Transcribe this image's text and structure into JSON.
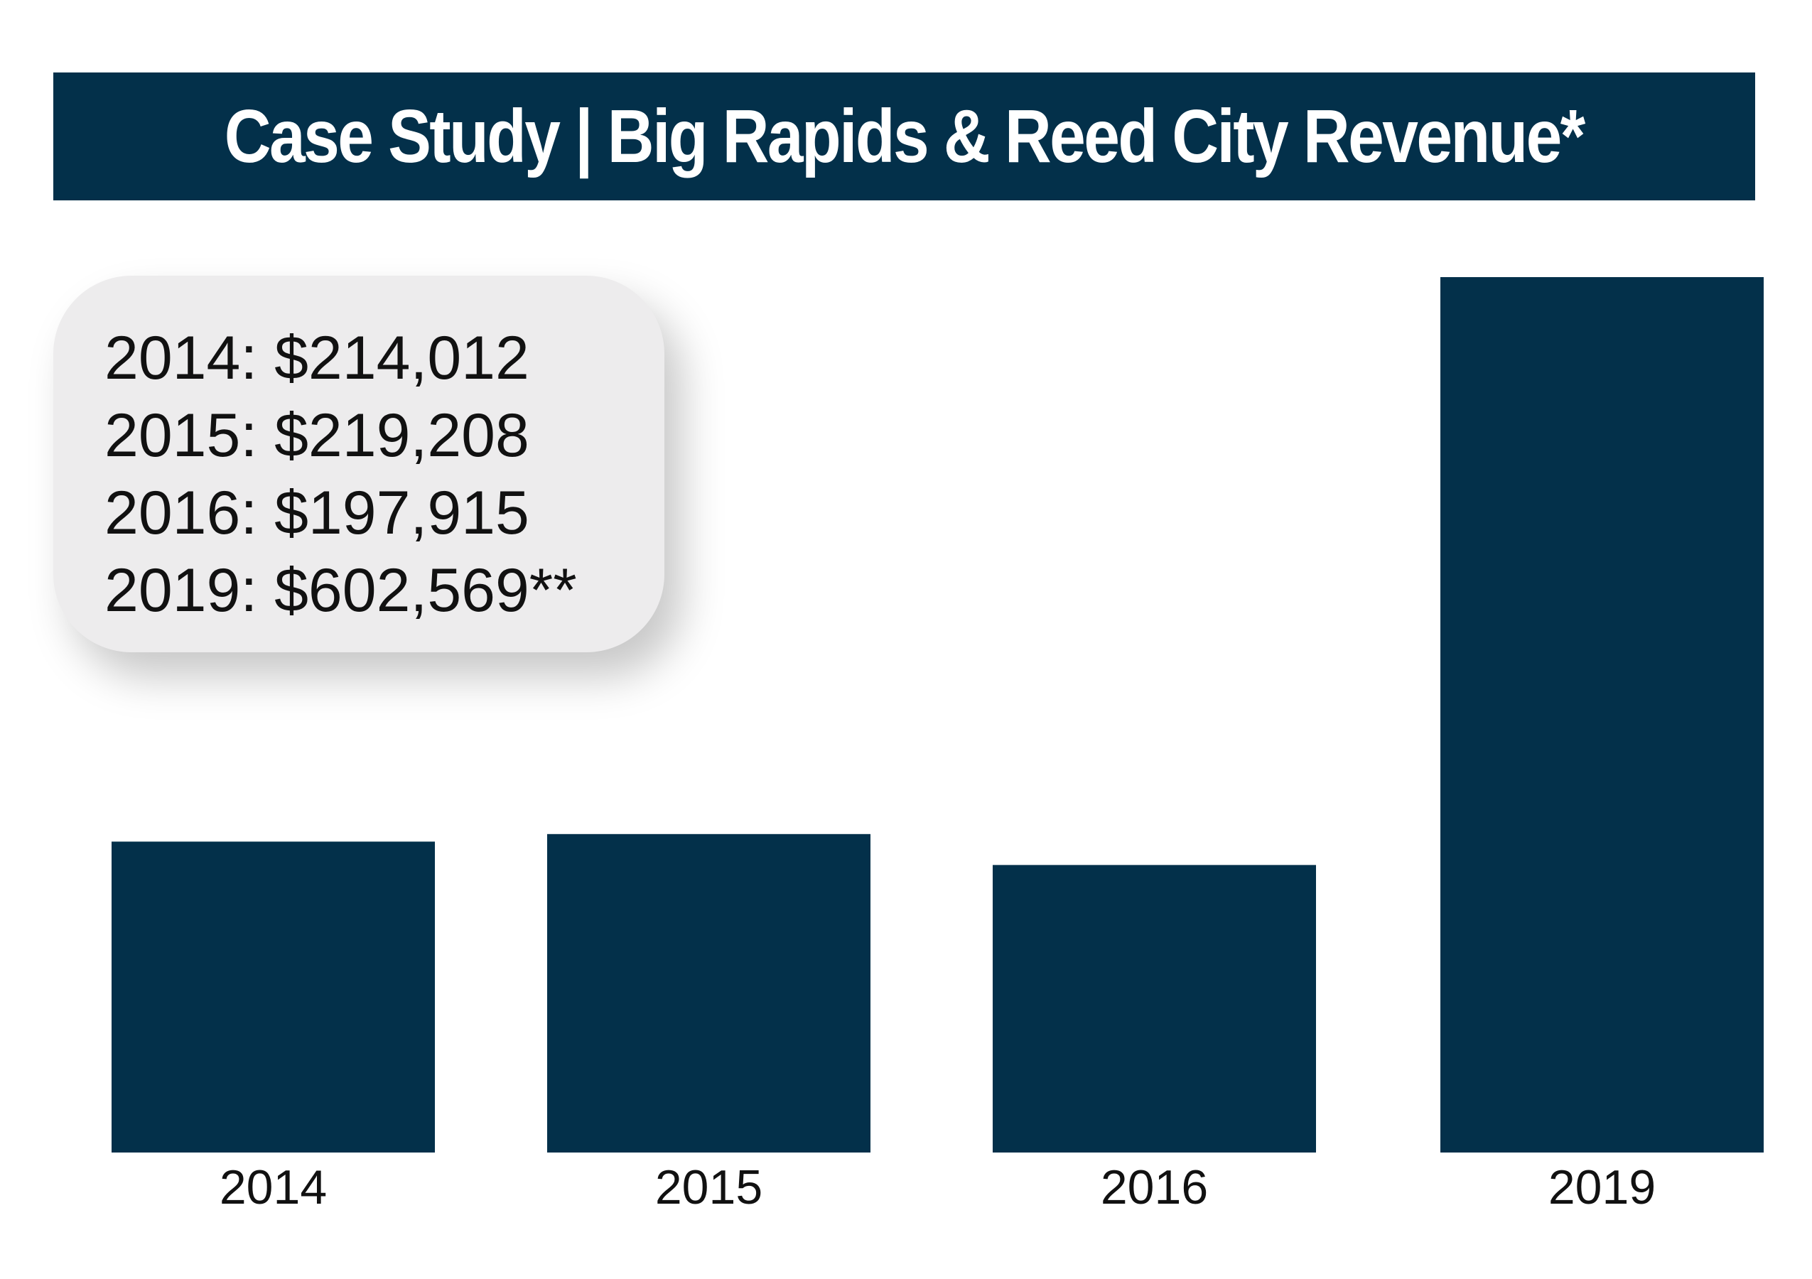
{
  "title": "Case Study | Big Rapids & Reed City Revenue*",
  "colors": {
    "bar": "#03304a",
    "banner": "#03304a",
    "legend_bg": "#edeced",
    "text": "#111111"
  },
  "legend": {
    "lines": [
      "2014: $214,012",
      "2015: $219,208",
      "2016: $197,915",
      "2019: $602,569**"
    ]
  },
  "chart_data": {
    "type": "bar",
    "title": "Case Study | Big Rapids & Reed City Revenue*",
    "categories": [
      "2014",
      "2015",
      "2016",
      "2019"
    ],
    "values": [
      214012,
      219208,
      197915,
      602569
    ],
    "xlabel": "",
    "ylabel": "",
    "grid": false,
    "legend_placement": "top-left"
  }
}
